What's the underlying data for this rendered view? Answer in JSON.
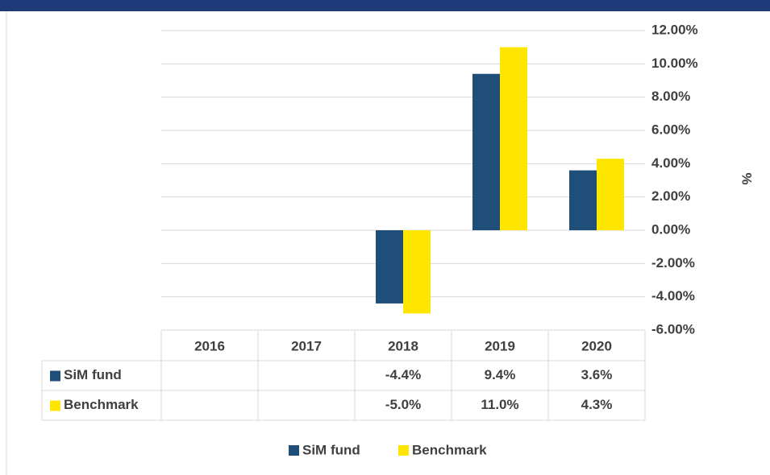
{
  "chart_data": {
    "type": "bar",
    "categories": [
      "2016",
      "2017",
      "2018",
      "2019",
      "2020"
    ],
    "series": [
      {
        "name": "SiM fund",
        "color": "#1f4e79",
        "values": [
          null,
          null,
          -4.4,
          9.4,
          3.6
        ],
        "value_labels": [
          null,
          null,
          "-4.4%",
          "9.4%",
          "3.6%"
        ]
      },
      {
        "name": "Benchmark",
        "color": "#ffe600",
        "values": [
          null,
          null,
          -5.0,
          11.0,
          4.3
        ],
        "value_labels": [
          null,
          null,
          "-5.0%",
          "11.0%",
          "4.3%"
        ]
      }
    ],
    "ylabel": "%",
    "ylim": [
      -6,
      12
    ],
    "yticks": [
      {
        "value": -6,
        "label": "-6.00%"
      },
      {
        "value": -4,
        "label": "-4.00%"
      },
      {
        "value": -2,
        "label": "-2.00%"
      },
      {
        "value": 0,
        "label": "0.00%"
      },
      {
        "value": 2,
        "label": "2.00%"
      },
      {
        "value": 4,
        "label": "4.00%"
      },
      {
        "value": 6,
        "label": "6.00%"
      },
      {
        "value": 8,
        "label": "8.00%"
      },
      {
        "value": 10,
        "label": "10.00%"
      },
      {
        "value": 12,
        "label": "12.00%"
      }
    ],
    "grid": true,
    "legend": "bottom"
  }
}
